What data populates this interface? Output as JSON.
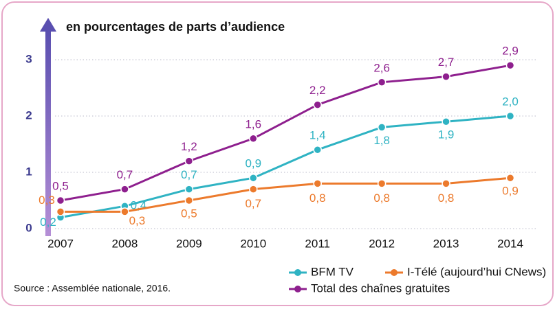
{
  "chart_data": {
    "type": "line",
    "title": "en pourcentages de parts d’audience",
    "source": "Source : Assemblée nationale, 2016.",
    "categories": [
      "2007",
      "2008",
      "2009",
      "2010",
      "2011",
      "2012",
      "2013",
      "2014"
    ],
    "series": [
      {
        "name": "BFM TV",
        "color": "#2fb3c3",
        "values": [
          0.2,
          0.4,
          0.7,
          0.9,
          1.4,
          1.8,
          1.9,
          2.0
        ],
        "value_labels": [
          "0,2",
          "0,4",
          "0,7",
          "0,9",
          "1,4",
          "1,8",
          "1,9",
          "2,0"
        ]
      },
      {
        "name": "I-Télé (aujourd’hui CNews)",
        "color": "#ec7a2c",
        "values": [
          0.3,
          0.3,
          0.5,
          0.7,
          0.8,
          0.8,
          0.8,
          0.9
        ],
        "value_labels": [
          "0,3",
          "0,3",
          "0,5",
          "0,7",
          "0,8",
          "0,8",
          "0,8",
          "0,9"
        ]
      },
      {
        "name": "Total des chaînes gratuites",
        "color": "#8e1f8e",
        "values": [
          0.5,
          0.7,
          1.2,
          1.6,
          2.2,
          2.6,
          2.7,
          2.9
        ],
        "value_labels": [
          "0,5",
          "0,7",
          "1,2",
          "1,6",
          "2,2",
          "2,6",
          "2,7",
          "2,9"
        ]
      }
    ],
    "ylim": [
      0,
      3.5
    ],
    "yticks": [
      0,
      1,
      2,
      3
    ],
    "grid": true,
    "legend": "lower right"
  }
}
